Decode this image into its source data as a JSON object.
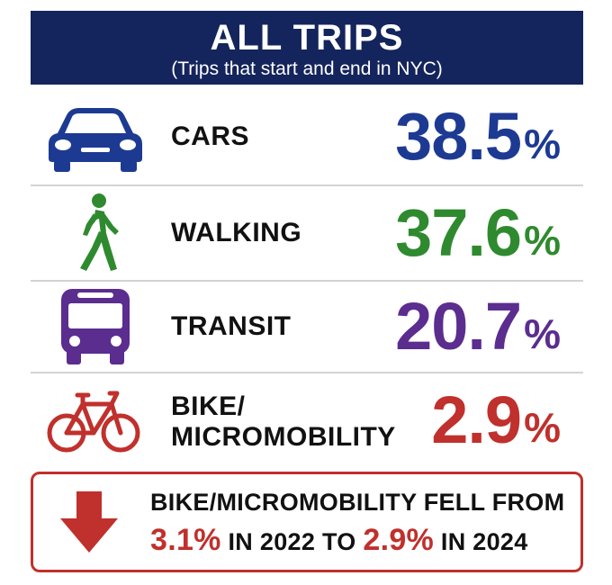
{
  "header": {
    "title": "ALL TRIPS",
    "subtitle": "(Trips that start and end in NYC)"
  },
  "chart_data": {
    "type": "table",
    "title": "ALL TRIPS",
    "subtitle": "(Trips that start and end in NYC)",
    "categories": [
      "CARS",
      "WALKING",
      "TRANSIT",
      "BIKE/ MICROMOBILITY"
    ],
    "values": [
      38.5,
      37.6,
      20.7,
      2.9
    ],
    "unit": "%",
    "rows": [
      {
        "label": "CARS",
        "value": "38.5",
        "unit": "%",
        "color": "#1d3a93",
        "icon": "car-icon"
      },
      {
        "label": "WALKING",
        "value": "37.6",
        "unit": "%",
        "color": "#2f8a2f",
        "icon": "walking-person-icon"
      },
      {
        "label": "TRANSIT",
        "value": "20.7",
        "unit": "%",
        "color": "#5b2d8f",
        "icon": "bus-icon"
      },
      {
        "label": "BIKE/\nMICROMOBILITY",
        "value": "2.9",
        "unit": "%",
        "color": "#c0302c",
        "icon": "bicycle-icon"
      }
    ]
  },
  "callout": {
    "icon": "down-arrow-icon",
    "line1": "BIKE/MICROMOBILITY FELL FROM",
    "from_value": "3.1%",
    "in_text_1": " IN 2022 TO ",
    "to_value": "2.9%",
    "in_text_2": " IN 2024",
    "accent_color": "#c0302c"
  },
  "colors": {
    "header_bg": "#14245c",
    "divider": "#d3d3d3"
  }
}
